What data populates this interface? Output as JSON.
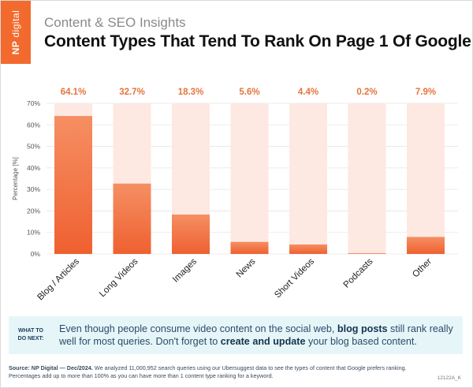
{
  "header": {
    "logo_bold": "NP",
    "logo_rest": "digital",
    "subtitle": "Content & SEO Insights",
    "title": "Content Types That Tend To Rank On Page 1 Of Google"
  },
  "chart_data": {
    "type": "bar",
    "categories": [
      "Blog / Articles",
      "Long Videos",
      "Images",
      "News",
      "Short Videos",
      "Podcasts",
      "Other"
    ],
    "values": [
      64.1,
      32.7,
      18.3,
      5.6,
      4.4,
      0.2,
      7.9
    ],
    "value_labels": [
      "64.1%",
      "32.7%",
      "18.3%",
      "5.6%",
      "4.4%",
      "0.2%",
      "7.9%"
    ],
    "ylabel": "Percentage [%]",
    "ylim": [
      0,
      70
    ],
    "yticks": [
      0,
      10,
      20,
      30,
      40,
      50,
      60,
      70
    ],
    "ytick_labels": [
      "0%",
      "10%",
      "20%",
      "30%",
      "40%",
      "50%",
      "60%",
      "70%"
    ],
    "colors": {
      "bar_top": "#f58f63",
      "bar_bottom": "#ef6030",
      "track": "#fde9e1",
      "value_label": "#e5743f"
    }
  },
  "callout": {
    "label_line1": "WHAT TO",
    "label_line2": "DO NEXT:",
    "text_part1": "Even though people consume video content on the social web, ",
    "text_bold1": "blog posts",
    "text_part2": " still rank really well for most queries. Don't forget to ",
    "text_bold2": "create and update",
    "text_part3": " your blog based content."
  },
  "footer": {
    "source_bold": "Source:  NP Digital — Dec/2024.",
    "source_text": " We analyzed 11,000,952 search queries using our Ubersuggest data to see the types of content that Google prefers ranking. Percentages add up to more than 100% as you can have more than 1 content type ranking for a keyword.",
    "code": "12122A_K"
  }
}
